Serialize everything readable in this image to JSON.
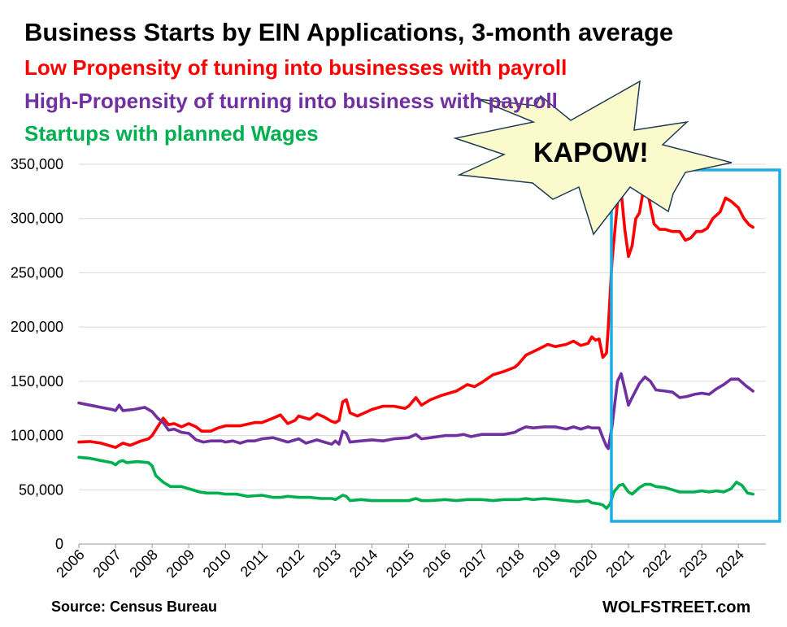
{
  "title": "Business Starts by EIN Applications, 3-month average",
  "footer": {
    "source": "Source: Census Bureau",
    "brand": "WOLFSTREET.com"
  },
  "annotation": {
    "text": "KAPOW!",
    "burst_color": "#fafacd",
    "box_color": "#1aaee5"
  },
  "chart_data": {
    "type": "line",
    "title": "Business Starts by EIN Applications, 3-month average",
    "xlabel": "",
    "ylabel": "",
    "ylim": [
      0,
      350000
    ],
    "yticks": [
      0,
      50000,
      100000,
      150000,
      200000,
      250000,
      300000,
      350000
    ],
    "ytick_labels": [
      "0",
      "50,000",
      "100,000",
      "150,000",
      "200,000",
      "250,000",
      "300,000",
      "350,000"
    ],
    "xlim": [
      2006,
      2024.75
    ],
    "xtick_labels": [
      "2006",
      "2007",
      "2008",
      "2009",
      "2010",
      "2011",
      "2012",
      "2013",
      "2014",
      "2015",
      "2016",
      "2017",
      "2018",
      "2019",
      "2020",
      "2021",
      "2022",
      "2023",
      "2024"
    ],
    "grid": "horizontal",
    "legend": "top-left",
    "series": [
      {
        "name": "Low Propensity of tuning into businesses with payroll",
        "color": "#ff0000",
        "points": [
          [
            2006.0,
            94000
          ],
          [
            2006.3,
            94500
          ],
          [
            2006.6,
            93000
          ],
          [
            2006.9,
            90000
          ],
          [
            2007.0,
            89000
          ],
          [
            2007.2,
            93000
          ],
          [
            2007.4,
            91000
          ],
          [
            2007.7,
            95000
          ],
          [
            2007.9,
            97000
          ],
          [
            2008.0,
            100000
          ],
          [
            2008.15,
            108000
          ],
          [
            2008.3,
            116000
          ],
          [
            2008.45,
            110000
          ],
          [
            2008.6,
            111000
          ],
          [
            2008.8,
            108000
          ],
          [
            2009.0,
            111000
          ],
          [
            2009.2,
            108000
          ],
          [
            2009.35,
            104000
          ],
          [
            2009.6,
            104000
          ],
          [
            2009.8,
            107000
          ],
          [
            2010.0,
            109000
          ],
          [
            2010.4,
            109000
          ],
          [
            2010.8,
            112000
          ],
          [
            2011.0,
            112000
          ],
          [
            2011.3,
            116000
          ],
          [
            2011.5,
            119000
          ],
          [
            2011.7,
            111000
          ],
          [
            2011.9,
            114000
          ],
          [
            2012.0,
            118000
          ],
          [
            2012.3,
            115000
          ],
          [
            2012.5,
            120000
          ],
          [
            2012.7,
            117000
          ],
          [
            2012.9,
            113000
          ],
          [
            2013.0,
            112000
          ],
          [
            2013.1,
            114000
          ],
          [
            2013.2,
            131000
          ],
          [
            2013.3,
            133000
          ],
          [
            2013.4,
            121000
          ],
          [
            2013.6,
            118000
          ],
          [
            2013.8,
            121000
          ],
          [
            2014.0,
            124000
          ],
          [
            2014.3,
            127000
          ],
          [
            2014.6,
            127000
          ],
          [
            2014.9,
            125000
          ],
          [
            2015.0,
            127000
          ],
          [
            2015.2,
            135000
          ],
          [
            2015.35,
            128000
          ],
          [
            2015.6,
            133000
          ],
          [
            2015.9,
            137000
          ],
          [
            2016.0,
            138000
          ],
          [
            2016.3,
            141000
          ],
          [
            2016.6,
            147000
          ],
          [
            2016.8,
            145000
          ],
          [
            2017.0,
            149000
          ],
          [
            2017.3,
            156000
          ],
          [
            2017.6,
            159000
          ],
          [
            2017.9,
            163000
          ],
          [
            2018.0,
            166000
          ],
          [
            2018.2,
            174000
          ],
          [
            2018.5,
            179000
          ],
          [
            2018.8,
            184000
          ],
          [
            2019.0,
            182000
          ],
          [
            2019.3,
            184000
          ],
          [
            2019.5,
            187000
          ],
          [
            2019.7,
            183000
          ],
          [
            2019.9,
            185000
          ],
          [
            2020.0,
            191000
          ],
          [
            2020.1,
            188000
          ],
          [
            2020.2,
            189000
          ],
          [
            2020.3,
            172000
          ],
          [
            2020.4,
            176000
          ],
          [
            2020.45,
            200000
          ],
          [
            2020.55,
            260000
          ],
          [
            2020.7,
            315000
          ],
          [
            2020.8,
            325000
          ],
          [
            2020.9,
            290000
          ],
          [
            2021.0,
            265000
          ],
          [
            2021.1,
            275000
          ],
          [
            2021.2,
            300000
          ],
          [
            2021.3,
            305000
          ],
          [
            2021.4,
            325000
          ],
          [
            2021.55,
            320000
          ],
          [
            2021.7,
            295000
          ],
          [
            2021.85,
            290000
          ],
          [
            2022.0,
            290000
          ],
          [
            2022.2,
            288000
          ],
          [
            2022.4,
            288000
          ],
          [
            2022.55,
            280000
          ],
          [
            2022.7,
            282000
          ],
          [
            2022.85,
            288000
          ],
          [
            2023.0,
            288000
          ],
          [
            2023.15,
            291000
          ],
          [
            2023.3,
            300000
          ],
          [
            2023.5,
            306000
          ],
          [
            2023.65,
            319000
          ],
          [
            2023.8,
            316000
          ],
          [
            2024.0,
            310000
          ],
          [
            2024.15,
            300000
          ],
          [
            2024.3,
            294000
          ],
          [
            2024.4,
            292000
          ]
        ]
      },
      {
        "name": "High-Propensity of turning into business with payroll",
        "color": "#7030a0",
        "points": [
          [
            2006.0,
            130000
          ],
          [
            2006.3,
            128000
          ],
          [
            2006.6,
            126000
          ],
          [
            2006.9,
            124000
          ],
          [
            2007.0,
            123000
          ],
          [
            2007.1,
            128000
          ],
          [
            2007.2,
            123000
          ],
          [
            2007.5,
            124000
          ],
          [
            2007.8,
            126000
          ],
          [
            2008.0,
            122000
          ],
          [
            2008.15,
            116000
          ],
          [
            2008.3,
            112000
          ],
          [
            2008.45,
            105000
          ],
          [
            2008.6,
            106000
          ],
          [
            2008.8,
            103000
          ],
          [
            2009.0,
            102000
          ],
          [
            2009.2,
            96000
          ],
          [
            2009.4,
            94000
          ],
          [
            2009.6,
            95000
          ],
          [
            2009.9,
            95000
          ],
          [
            2010.0,
            94000
          ],
          [
            2010.2,
            95000
          ],
          [
            2010.4,
            93000
          ],
          [
            2010.6,
            95000
          ],
          [
            2010.8,
            95000
          ],
          [
            2011.0,
            97000
          ],
          [
            2011.3,
            98000
          ],
          [
            2011.5,
            96000
          ],
          [
            2011.7,
            94000
          ],
          [
            2012.0,
            97000
          ],
          [
            2012.2,
            93000
          ],
          [
            2012.5,
            96000
          ],
          [
            2012.7,
            94000
          ],
          [
            2012.9,
            92000
          ],
          [
            2013.0,
            95000
          ],
          [
            2013.1,
            92000
          ],
          [
            2013.2,
            104000
          ],
          [
            2013.3,
            102000
          ],
          [
            2013.4,
            94000
          ],
          [
            2013.7,
            95000
          ],
          [
            2014.0,
            96000
          ],
          [
            2014.3,
            95000
          ],
          [
            2014.6,
            97000
          ],
          [
            2015.0,
            98000
          ],
          [
            2015.2,
            101000
          ],
          [
            2015.35,
            97000
          ],
          [
            2015.6,
            98000
          ],
          [
            2016.0,
            100000
          ],
          [
            2016.3,
            100000
          ],
          [
            2016.5,
            101000
          ],
          [
            2016.7,
            99000
          ],
          [
            2017.0,
            101000
          ],
          [
            2017.3,
            101000
          ],
          [
            2017.6,
            101000
          ],
          [
            2017.9,
            103000
          ],
          [
            2018.0,
            105000
          ],
          [
            2018.2,
            108000
          ],
          [
            2018.4,
            107000
          ],
          [
            2018.7,
            108000
          ],
          [
            2019.0,
            108000
          ],
          [
            2019.3,
            106000
          ],
          [
            2019.5,
            108000
          ],
          [
            2019.7,
            106000
          ],
          [
            2019.9,
            108000
          ],
          [
            2020.0,
            107000
          ],
          [
            2020.2,
            107000
          ],
          [
            2020.3,
            98000
          ],
          [
            2020.4,
            90000
          ],
          [
            2020.45,
            88000
          ],
          [
            2020.55,
            108000
          ],
          [
            2020.7,
            150000
          ],
          [
            2020.8,
            157000
          ],
          [
            2020.9,
            143000
          ],
          [
            2021.0,
            128000
          ],
          [
            2021.1,
            135000
          ],
          [
            2021.3,
            148000
          ],
          [
            2021.45,
            154000
          ],
          [
            2021.6,
            150000
          ],
          [
            2021.75,
            142000
          ],
          [
            2022.0,
            141000
          ],
          [
            2022.2,
            140000
          ],
          [
            2022.4,
            135000
          ],
          [
            2022.6,
            136000
          ],
          [
            2022.8,
            138000
          ],
          [
            2023.0,
            139000
          ],
          [
            2023.2,
            138000
          ],
          [
            2023.4,
            143000
          ],
          [
            2023.6,
            147000
          ],
          [
            2023.8,
            152000
          ],
          [
            2024.0,
            152000
          ],
          [
            2024.2,
            146000
          ],
          [
            2024.4,
            141000
          ]
        ]
      },
      {
        "name": "Startups with planned Wages",
        "color": "#00b050",
        "points": [
          [
            2006.0,
            80000
          ],
          [
            2006.3,
            79000
          ],
          [
            2006.6,
            77000
          ],
          [
            2006.9,
            75000
          ],
          [
            2007.0,
            73000
          ],
          [
            2007.1,
            76000
          ],
          [
            2007.2,
            77000
          ],
          [
            2007.3,
            75000
          ],
          [
            2007.6,
            76000
          ],
          [
            2007.9,
            75000
          ],
          [
            2008.0,
            72000
          ],
          [
            2008.1,
            63000
          ],
          [
            2008.3,
            57000
          ],
          [
            2008.5,
            53000
          ],
          [
            2008.8,
            53000
          ],
          [
            2009.0,
            51000
          ],
          [
            2009.3,
            48000
          ],
          [
            2009.5,
            47000
          ],
          [
            2009.8,
            47000
          ],
          [
            2010.0,
            46000
          ],
          [
            2010.3,
            46000
          ],
          [
            2010.6,
            44000
          ],
          [
            2011.0,
            45000
          ],
          [
            2011.3,
            43000
          ],
          [
            2011.5,
            43000
          ],
          [
            2011.7,
            44000
          ],
          [
            2012.0,
            43000
          ],
          [
            2012.3,
            43000
          ],
          [
            2012.6,
            42000
          ],
          [
            2012.9,
            42000
          ],
          [
            2013.0,
            41000
          ],
          [
            2013.2,
            45000
          ],
          [
            2013.3,
            44000
          ],
          [
            2013.4,
            40000
          ],
          [
            2013.7,
            41000
          ],
          [
            2014.0,
            40000
          ],
          [
            2014.3,
            40000
          ],
          [
            2014.6,
            40000
          ],
          [
            2015.0,
            40000
          ],
          [
            2015.2,
            42000
          ],
          [
            2015.35,
            40000
          ],
          [
            2015.6,
            40000
          ],
          [
            2016.0,
            41000
          ],
          [
            2016.3,
            40000
          ],
          [
            2016.6,
            41000
          ],
          [
            2017.0,
            41000
          ],
          [
            2017.3,
            40000
          ],
          [
            2017.6,
            41000
          ],
          [
            2018.0,
            41000
          ],
          [
            2018.2,
            42000
          ],
          [
            2018.4,
            41000
          ],
          [
            2018.7,
            42000
          ],
          [
            2019.0,
            41000
          ],
          [
            2019.3,
            40000
          ],
          [
            2019.6,
            39000
          ],
          [
            2019.9,
            40000
          ],
          [
            2020.0,
            38000
          ],
          [
            2020.2,
            37000
          ],
          [
            2020.3,
            36000
          ],
          [
            2020.4,
            33000
          ],
          [
            2020.5,
            37000
          ],
          [
            2020.6,
            48000
          ],
          [
            2020.75,
            54000
          ],
          [
            2020.85,
            55000
          ],
          [
            2021.0,
            48000
          ],
          [
            2021.1,
            46000
          ],
          [
            2021.3,
            52000
          ],
          [
            2021.45,
            55000
          ],
          [
            2021.6,
            55000
          ],
          [
            2021.75,
            53000
          ],
          [
            2022.0,
            52000
          ],
          [
            2022.2,
            50000
          ],
          [
            2022.4,
            48000
          ],
          [
            2022.6,
            48000
          ],
          [
            2022.8,
            48000
          ],
          [
            2023.0,
            49000
          ],
          [
            2023.2,
            48000
          ],
          [
            2023.4,
            49000
          ],
          [
            2023.6,
            48000
          ],
          [
            2023.8,
            51000
          ],
          [
            2023.95,
            57000
          ],
          [
            2024.1,
            54000
          ],
          [
            2024.25,
            47000
          ],
          [
            2024.4,
            46000
          ]
        ]
      }
    ]
  }
}
